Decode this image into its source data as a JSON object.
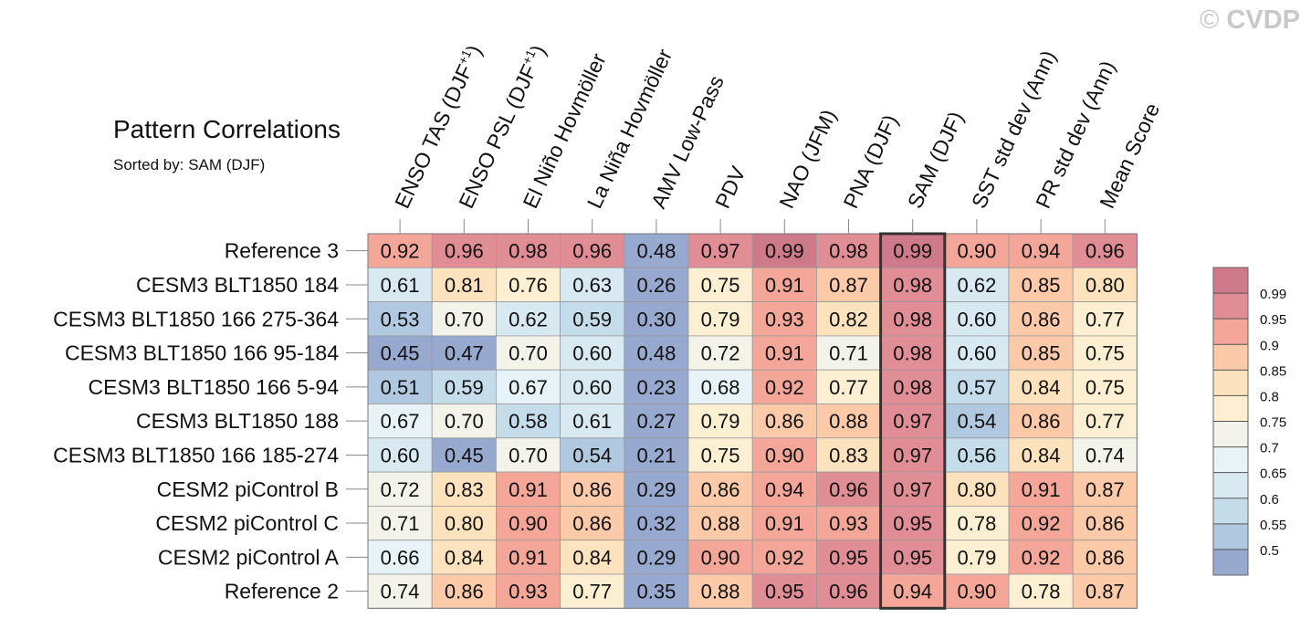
{
  "watermark": {
    "symbol": "©",
    "text": "CVDP"
  },
  "chart_data": {
    "type": "heatmap",
    "title": "Pattern Correlations",
    "subtitle": "Sorted by: SAM (DJF)",
    "highlighted_column": "SAM (DJF)",
    "columns": [
      {
        "name": "ENSO TAS (DJF",
        "superscript": "+1",
        "suffix": ")"
      },
      {
        "name": "ENSO PSL (DJF",
        "superscript": "+1",
        "suffix": ")"
      },
      {
        "name": "El Niño Hovmöller"
      },
      {
        "name": "La Niña Hovmöller"
      },
      {
        "name": "AMV Low-Pass"
      },
      {
        "name": "PDV"
      },
      {
        "name": "NAO (JFM)"
      },
      {
        "name": "PNA (DJF)"
      },
      {
        "name": "SAM (DJF)"
      },
      {
        "name": "SST std dev (Ann)"
      },
      {
        "name": "PR std dev (Ann)"
      },
      {
        "name": "Mean Score"
      }
    ],
    "rows": [
      {
        "label": "Reference 3",
        "values": [
          "0.92",
          "0.96",
          "0.98",
          "0.96",
          "0.48",
          "0.97",
          "0.99",
          "0.98",
          "0.99",
          "0.90",
          "0.94",
          "0.96"
        ]
      },
      {
        "label": "CESM3 BLT1850 184",
        "values": [
          "0.61",
          "0.81",
          "0.76",
          "0.63",
          "0.26",
          "0.75",
          "0.91",
          "0.87",
          "0.98",
          "0.62",
          "0.85",
          "0.80"
        ]
      },
      {
        "label": "CESM3 BLT1850 166 275-364",
        "values": [
          "0.53",
          "0.70",
          "0.62",
          "0.59",
          "0.30",
          "0.79",
          "0.93",
          "0.82",
          "0.98",
          "0.60",
          "0.86",
          "0.77"
        ]
      },
      {
        "label": "CESM3 BLT1850 166 95-184",
        "values": [
          "0.45",
          "0.47",
          "0.70",
          "0.60",
          "0.48",
          "0.72",
          "0.91",
          "0.71",
          "0.98",
          "0.60",
          "0.85",
          "0.75"
        ]
      },
      {
        "label": "CESM3 BLT1850 166 5-94",
        "values": [
          "0.51",
          "0.59",
          "0.67",
          "0.60",
          "0.23",
          "0.68",
          "0.92",
          "0.77",
          "0.98",
          "0.57",
          "0.84",
          "0.75"
        ]
      },
      {
        "label": "CESM3 BLT1850 188",
        "values": [
          "0.67",
          "0.70",
          "0.58",
          "0.61",
          "0.27",
          "0.79",
          "0.86",
          "0.88",
          "0.97",
          "0.54",
          "0.86",
          "0.77"
        ]
      },
      {
        "label": "CESM3 BLT1850 166 185-274",
        "values": [
          "0.60",
          "0.45",
          "0.70",
          "0.54",
          "0.21",
          "0.75",
          "0.90",
          "0.83",
          "0.97",
          "0.56",
          "0.84",
          "0.74"
        ]
      },
      {
        "label": "CESM2 piControl B",
        "values": [
          "0.72",
          "0.83",
          "0.91",
          "0.86",
          "0.29",
          "0.86",
          "0.94",
          "0.96",
          "0.97",
          "0.80",
          "0.91",
          "0.87"
        ]
      },
      {
        "label": "CESM2 piControl C",
        "values": [
          "0.71",
          "0.80",
          "0.90",
          "0.86",
          "0.32",
          "0.88",
          "0.91",
          "0.93",
          "0.95",
          "0.78",
          "0.92",
          "0.86"
        ]
      },
      {
        "label": "CESM2 piControl A",
        "values": [
          "0.66",
          "0.84",
          "0.91",
          "0.84",
          "0.29",
          "0.90",
          "0.92",
          "0.95",
          "0.95",
          "0.79",
          "0.92",
          "0.86"
        ]
      },
      {
        "label": "Reference 2",
        "values": [
          "0.74",
          "0.86",
          "0.93",
          "0.77",
          "0.35",
          "0.88",
          "0.95",
          "0.96",
          "0.94",
          "0.90",
          "0.78",
          "0.87"
        ]
      }
    ],
    "colorbar": {
      "levels": [
        "0.5",
        "0.55",
        "0.6",
        "0.65",
        "0.7",
        "0.75",
        "0.8",
        "0.85",
        "0.9",
        "0.95",
        "0.99"
      ],
      "colors": [
        "#98a9d0",
        "#b1c8e1",
        "#c5dcea",
        "#d8e9f1",
        "#e7f3f6",
        "#f3f3ea",
        "#fdf0d2",
        "#fde3bd",
        "#fcc9a9",
        "#f4a799",
        "#e18d96",
        "#cf7a8b"
      ]
    }
  }
}
